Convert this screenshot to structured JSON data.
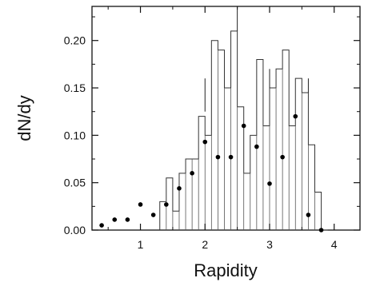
{
  "chart_data": {
    "type": "scatter",
    "title": "",
    "xlabel": "Rapidity",
    "ylabel": "dN/dy",
    "xlim": [
      0.25,
      4.4
    ],
    "ylim": [
      0.0,
      0.236
    ],
    "grid": false,
    "xticks": [
      1,
      2,
      3,
      4
    ],
    "xtick_labels": [
      "1",
      "2",
      "3",
      "4"
    ],
    "yticks": [
      0.0,
      0.05,
      0.1,
      0.15,
      0.2
    ],
    "ytick_labels": [
      "0.00",
      "0.05",
      "0.10",
      "0.15",
      "0.20"
    ],
    "series": [
      {
        "kind": "points",
        "x": [
          0.4,
          0.6,
          0.8,
          1.0,
          1.2,
          1.4,
          1.6,
          1.8,
          2.0,
          2.2,
          2.4,
          2.6,
          2.8,
          3.0,
          3.2,
          3.4,
          3.6,
          3.8
        ],
        "y": [
          0.005,
          0.011,
          0.011,
          0.027,
          0.016,
          0.027,
          0.044,
          0.06,
          0.093,
          0.077,
          0.077,
          0.11,
          0.088,
          0.049,
          0.077,
          0.12,
          0.016,
          0.0
        ]
      },
      {
        "kind": "histogram",
        "edges": [
          1.3,
          1.4,
          1.5,
          1.6,
          1.7,
          1.8,
          1.9,
          2.0,
          2.1,
          2.2,
          2.3,
          2.4,
          2.5,
          2.6,
          2.7,
          2.8,
          2.9,
          3.0,
          3.1,
          3.2,
          3.3,
          3.4,
          3.5,
          3.6,
          3.7,
          3.8,
          3.9
        ],
        "values": [
          0.03,
          0.055,
          0.02,
          0.06,
          0.075,
          0.075,
          0.12,
          0.1,
          0.2,
          0.19,
          0.15,
          0.21,
          0.13,
          0.06,
          0.1,
          0.18,
          0.11,
          0.15,
          0.17,
          0.19,
          0.11,
          0.16,
          0.145,
          0.09,
          0.04,
          0.0
        ],
        "error_bars": [
          {
            "x": 2.0,
            "low": 0.125,
            "high": 0.16
          },
          {
            "x": 2.5,
            "low": 0.21,
            "high": 0.236
          },
          {
            "x": 3.0,
            "low": 0.15,
            "high": 0.17
          },
          {
            "x": 3.6,
            "low": 0.145,
            "high": 0.16
          }
        ]
      }
    ]
  }
}
